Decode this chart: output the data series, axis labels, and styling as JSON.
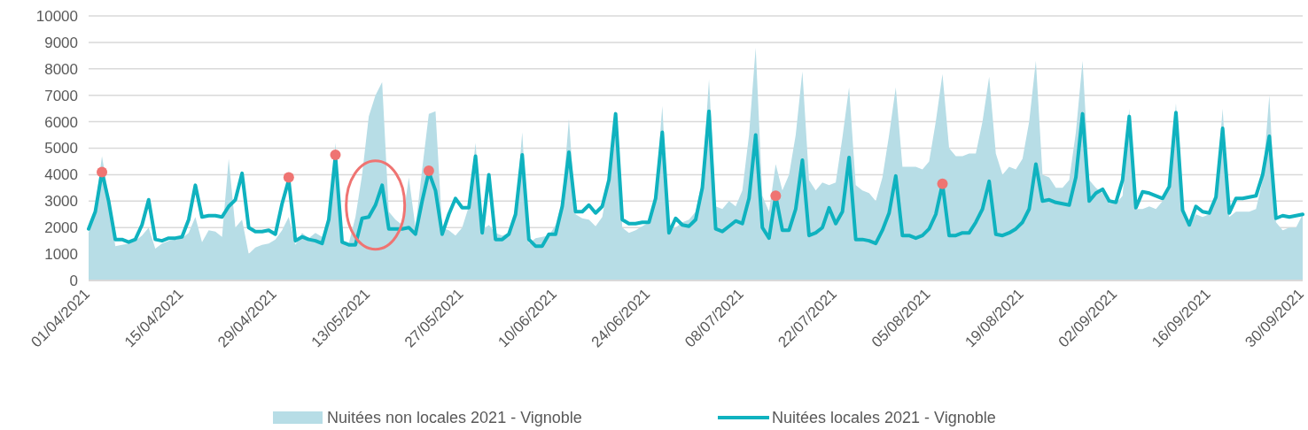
{
  "chart_data": {
    "type": "area",
    "x": [
      "2021-04-01",
      "2021-04-02",
      "2021-04-03",
      "2021-04-04",
      "2021-04-05",
      "2021-04-06",
      "2021-04-07",
      "2021-04-08",
      "2021-04-09",
      "2021-04-10",
      "2021-04-11",
      "2021-04-12",
      "2021-04-13",
      "2021-04-14",
      "2021-04-15",
      "2021-04-16",
      "2021-04-17",
      "2021-04-18",
      "2021-04-19",
      "2021-04-20",
      "2021-04-21",
      "2021-04-22",
      "2021-04-23",
      "2021-04-24",
      "2021-04-25",
      "2021-04-26",
      "2021-04-27",
      "2021-04-28",
      "2021-04-29",
      "2021-04-30",
      "2021-05-01",
      "2021-05-02",
      "2021-05-03",
      "2021-05-04",
      "2021-05-05",
      "2021-05-06",
      "2021-05-07",
      "2021-05-08",
      "2021-05-09",
      "2021-05-10",
      "2021-05-11",
      "2021-05-12",
      "2021-05-13",
      "2021-05-14",
      "2021-05-15",
      "2021-05-16",
      "2021-05-17",
      "2021-05-18",
      "2021-05-19",
      "2021-05-20",
      "2021-05-21",
      "2021-05-22",
      "2021-05-23",
      "2021-05-24",
      "2021-05-25",
      "2021-05-26",
      "2021-05-27",
      "2021-05-28",
      "2021-05-29",
      "2021-05-30",
      "2021-05-31",
      "2021-06-01",
      "2021-06-02",
      "2021-06-03",
      "2021-06-04",
      "2021-06-05",
      "2021-06-06",
      "2021-06-07",
      "2021-06-08",
      "2021-06-09",
      "2021-06-10",
      "2021-06-11",
      "2021-06-12",
      "2021-06-13",
      "2021-06-14",
      "2021-06-15",
      "2021-06-16",
      "2021-06-17",
      "2021-06-18",
      "2021-06-19",
      "2021-06-20",
      "2021-06-21",
      "2021-06-22",
      "2021-06-23",
      "2021-06-24",
      "2021-06-25",
      "2021-06-26",
      "2021-06-27",
      "2021-06-28",
      "2021-06-29",
      "2021-06-30",
      "2021-07-01",
      "2021-07-02",
      "2021-07-03",
      "2021-07-04",
      "2021-07-05",
      "2021-07-06",
      "2021-07-07",
      "2021-07-08",
      "2021-07-09",
      "2021-07-10",
      "2021-07-11",
      "2021-07-12",
      "2021-07-13",
      "2021-07-14",
      "2021-07-15",
      "2021-07-16",
      "2021-07-17",
      "2021-07-18",
      "2021-07-19",
      "2021-07-20",
      "2021-07-21",
      "2021-07-22",
      "2021-07-23",
      "2021-07-24",
      "2021-07-25",
      "2021-07-26",
      "2021-07-27",
      "2021-07-28",
      "2021-07-29",
      "2021-07-30",
      "2021-07-31",
      "2021-08-01",
      "2021-08-02",
      "2021-08-03",
      "2021-08-04",
      "2021-08-05",
      "2021-08-06",
      "2021-08-07",
      "2021-08-08",
      "2021-08-09",
      "2021-08-10",
      "2021-08-11",
      "2021-08-12",
      "2021-08-13",
      "2021-08-14",
      "2021-08-15",
      "2021-08-16",
      "2021-08-17",
      "2021-08-18",
      "2021-08-19",
      "2021-08-20",
      "2021-08-21",
      "2021-08-22",
      "2021-08-23",
      "2021-08-24",
      "2021-08-25",
      "2021-08-26",
      "2021-08-27",
      "2021-08-28",
      "2021-08-29",
      "2021-08-30",
      "2021-08-31",
      "2021-09-01",
      "2021-09-02",
      "2021-09-03",
      "2021-09-04",
      "2021-09-05",
      "2021-09-06",
      "2021-09-07",
      "2021-09-08",
      "2021-09-09",
      "2021-09-10",
      "2021-09-11",
      "2021-09-12",
      "2021-09-13",
      "2021-09-14",
      "2021-09-15",
      "2021-09-16",
      "2021-09-17",
      "2021-09-18",
      "2021-09-19",
      "2021-09-20",
      "2021-09-21",
      "2021-09-22",
      "2021-09-23",
      "2021-09-24",
      "2021-09-25",
      "2021-09-26",
      "2021-09-27",
      "2021-09-28",
      "2021-09-29",
      "2021-09-30"
    ],
    "series": [
      {
        "name": "Nuitées non locales 2021 - Vignoble",
        "color": "#b7dde6",
        "values": [
          1800,
          2800,
          4700,
          3200,
          1300,
          1350,
          1400,
          1500,
          1700,
          2000,
          1200,
          1400,
          1500,
          1550,
          1600,
          1800,
          2400,
          1450,
          1900,
          1850,
          1650,
          4600,
          2000,
          2300,
          1000,
          1250,
          1350,
          1400,
          1550,
          1900,
          2400,
          1350,
          1800,
          1600,
          1800,
          1650,
          2200,
          5200,
          1500,
          1400,
          2400,
          4000,
          6200,
          7000,
          7500,
          2600,
          2300,
          2100,
          3900,
          2000,
          4200,
          6300,
          6400,
          2000,
          1900,
          1700,
          2000,
          2800,
          5200,
          1900,
          2100,
          1800,
          1700,
          1800,
          2500,
          5600,
          1400,
          1600,
          1650,
          1700,
          2100,
          3000,
          6100,
          2500,
          2350,
          2300,
          2050,
          2400,
          3800,
          6100,
          2000,
          1800,
          1900,
          2050,
          2200,
          3300,
          6600,
          1900,
          2000,
          2200,
          2300,
          2600,
          3800,
          7600,
          2800,
          2700,
          3000,
          2800,
          3400,
          5500,
          8800,
          3200,
          2600,
          4400,
          3400,
          4000,
          5500,
          7900,
          3800,
          3400,
          3700,
          3600,
          3700,
          5400,
          7300,
          3600,
          3400,
          3300,
          3000,
          3900,
          5500,
          7300,
          4300,
          4300,
          4300,
          4200,
          4500,
          6000,
          7800,
          5000,
          4700,
          4700,
          4800,
          4800,
          6000,
          7700,
          4800,
          4000,
          4300,
          4200,
          4600,
          6000,
          8300,
          4000,
          3900,
          3500,
          3500,
          3800,
          5600,
          8300,
          3800,
          3500,
          3300,
          2900,
          2900,
          3200,
          6500,
          2700,
          2700,
          2800,
          2700,
          3000,
          3700,
          6700,
          2800,
          2100,
          2500,
          2400,
          2500,
          3300,
          6500,
          2400,
          2600,
          2600,
          2600,
          2700,
          3800,
          7000,
          2200,
          1900,
          2000,
          2000,
          2500
        ]
      },
      {
        "name": "Nuitées locales 2021 - Vignoble",
        "type": "line",
        "color": "#0fb2bf",
        "values": [
          1950,
          2600,
          4100,
          3000,
          1550,
          1550,
          1450,
          1550,
          2100,
          3050,
          1550,
          1500,
          1600,
          1600,
          1650,
          2300,
          3600,
          2400,
          2450,
          2450,
          2400,
          2800,
          3050,
          4050,
          2000,
          1850,
          1850,
          1900,
          1750,
          2900,
          3800,
          1500,
          1650,
          1550,
          1500,
          1400,
          2300,
          4700,
          1450,
          1350,
          1350,
          2350,
          2400,
          2850,
          3600,
          1950,
          1950,
          1950,
          2000,
          1750,
          3000,
          4100,
          3400,
          1750,
          2500,
          3100,
          2750,
          2750,
          4700,
          1800,
          4000,
          1550,
          1550,
          1750,
          2500,
          4750,
          1550,
          1300,
          1300,
          1750,
          1750,
          2800,
          4850,
          2600,
          2600,
          2850,
          2550,
          2800,
          3800,
          6300,
          2300,
          2150,
          2150,
          2200,
          2200,
          3100,
          5600,
          1800,
          2350,
          2100,
          2050,
          2300,
          3500,
          6400,
          1950,
          1850,
          2050,
          2250,
          2150,
          3100,
          5500,
          2000,
          1600,
          3200,
          1900,
          1900,
          2700,
          4550,
          1700,
          1800,
          2000,
          2750,
          2150,
          2600,
          4650,
          1550,
          1550,
          1500,
          1400,
          1900,
          2550,
          3950,
          1700,
          1700,
          1600,
          1700,
          1950,
          2500,
          3650,
          1700,
          1700,
          1800,
          1800,
          2200,
          2700,
          3750,
          1750,
          1700,
          1800,
          1950,
          2200,
          2700,
          4400,
          3000,
          3050,
          2950,
          2900,
          2850,
          3900,
          6300,
          3000,
          3300,
          3450,
          3000,
          2950,
          3800,
          6200,
          2750,
          3350,
          3300,
          3200,
          3100,
          3550,
          6350,
          2650,
          2100,
          2800,
          2600,
          2550,
          3150,
          5750,
          2550,
          3100,
          3100,
          3150,
          3200,
          4000,
          5450,
          2350,
          2450,
          2400,
          2450,
          2500
        ]
      },
      {
        "type": "scatter",
        "color": "#ef7472",
        "marker": "circle",
        "x": [
          "2021-04-03",
          "2021-05-01",
          "2021-05-08",
          "2021-05-22",
          "2021-07-13",
          "2021-08-07"
        ],
        "values": [
          4100,
          3900,
          4750,
          4150,
          3200,
          3650
        ]
      }
    ],
    "xlim": [
      "2021-04-01",
      "2021-09-30"
    ],
    "xticks": [
      {
        "value": "2021-04-01",
        "label": "01/04/2021"
      },
      {
        "value": "2021-04-15",
        "label": "15/04/2021"
      },
      {
        "value": "2021-04-29",
        "label": "29/04/2021"
      },
      {
        "value": "2021-05-13",
        "label": "13/05/2021"
      },
      {
        "value": "2021-05-27",
        "label": "27/05/2021"
      },
      {
        "value": "2021-06-10",
        "label": "10/06/2021"
      },
      {
        "value": "2021-06-24",
        "label": "24/06/2021"
      },
      {
        "value": "2021-07-08",
        "label": "08/07/2021"
      },
      {
        "value": "2021-07-22",
        "label": "22/07/2021"
      },
      {
        "value": "2021-08-05",
        "label": "05/08/2021"
      },
      {
        "value": "2021-08-19",
        "label": "19/08/2021"
      },
      {
        "value": "2021-09-02",
        "label": "02/09/2021"
      },
      {
        "value": "2021-09-16",
        "label": "16/09/2021"
      },
      {
        "value": "2021-09-30",
        "label": "30/09/2021"
      }
    ],
    "ylim": [
      0,
      10000
    ],
    "yticks": [
      0,
      1000,
      2000,
      3000,
      4000,
      5000,
      6000,
      7000,
      8000,
      9000,
      10000
    ],
    "grid": "y",
    "legend": "bottom"
  }
}
